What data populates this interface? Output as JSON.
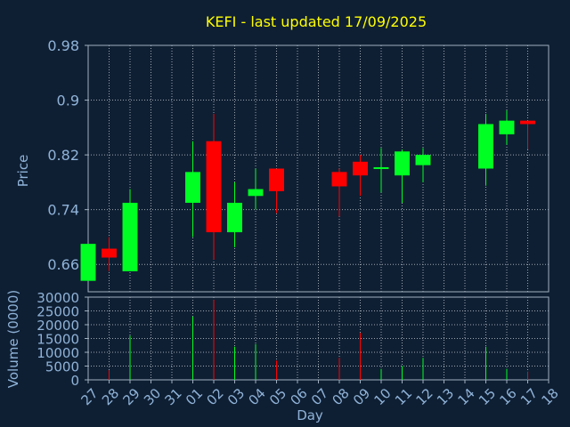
{
  "chart_data": {
    "type": "candlestick",
    "title": "KEFI - last updated 17/09/2025",
    "xlabel": "Day",
    "ylabel_price": "Price",
    "ylabel_volume": "Volume (0000)",
    "grid": true,
    "colors": {
      "background": "#0f1f33",
      "up": "#00ff22",
      "down": "#ff0000",
      "title": "#ffff00",
      "axis_text": "#8fb3d9",
      "grid": "#c0c8d0",
      "frame": "#a0b0c0"
    },
    "x_ticks": [
      "27",
      "28",
      "29",
      "30",
      "31",
      "01",
      "02",
      "03",
      "04",
      "05",
      "06",
      "07",
      "08",
      "09",
      "10",
      "11",
      "12",
      "13",
      "14",
      "15",
      "16",
      "17",
      "18"
    ],
    "price_axis": {
      "ylim": [
        0.62,
        0.98
      ],
      "ticks": [
        0.66,
        0.74,
        0.82,
        0.9,
        0.98
      ],
      "tick_labels": [
        "0.66",
        "0.74",
        "0.82",
        "0.9",
        "0.98"
      ]
    },
    "volume_axis": {
      "ylim": [
        0,
        30000
      ],
      "ticks": [
        0,
        5000,
        10000,
        15000,
        20000,
        25000,
        30000
      ],
      "tick_labels": [
        "0",
        "5000",
        "10000",
        "15000",
        "20000",
        "25000",
        "30000"
      ]
    },
    "candles": [
      {
        "day": 0,
        "open": 0.636,
        "close": 0.69,
        "high": 0.69,
        "low": 0.636,
        "volume": 0
      },
      {
        "day": 1,
        "open": 0.683,
        "close": 0.67,
        "high": 0.7,
        "low": 0.65,
        "volume": 3500
      },
      {
        "day": 2,
        "open": 0.65,
        "close": 0.75,
        "high": 0.77,
        "low": 0.65,
        "volume": 16000
      },
      {
        "day": 5,
        "open": 0.75,
        "close": 0.795,
        "high": 0.84,
        "low": 0.7,
        "volume": 23000
      },
      {
        "day": 6,
        "open": 0.84,
        "close": 0.707,
        "high": 0.88,
        "low": 0.667,
        "volume": 29000
      },
      {
        "day": 7,
        "open": 0.707,
        "close": 0.75,
        "high": 0.78,
        "low": 0.685,
        "volume": 12000
      },
      {
        "day": 8,
        "open": 0.76,
        "close": 0.77,
        "high": 0.8,
        "low": 0.74,
        "volume": 13000
      },
      {
        "day": 9,
        "open": 0.8,
        "close": 0.767,
        "high": 0.8,
        "low": 0.735,
        "volume": 7000
      },
      {
        "day": 12,
        "open": 0.795,
        "close": 0.774,
        "high": 0.8,
        "low": 0.73,
        "volume": 8000
      },
      {
        "day": 13,
        "open": 0.81,
        "close": 0.79,
        "high": 0.82,
        "low": 0.76,
        "volume": 17000
      },
      {
        "day": 14,
        "open": 0.8,
        "close": 0.802,
        "high": 0.83,
        "low": 0.765,
        "volume": 4000
      },
      {
        "day": 15,
        "open": 0.79,
        "close": 0.825,
        "high": 0.828,
        "low": 0.75,
        "volume": 5000
      },
      {
        "day": 16,
        "open": 0.805,
        "close": 0.82,
        "high": 0.83,
        "low": 0.78,
        "volume": 8000
      },
      {
        "day": 19,
        "open": 0.8,
        "close": 0.865,
        "high": 0.88,
        "low": 0.775,
        "volume": 12000
      },
      {
        "day": 20,
        "open": 0.85,
        "close": 0.87,
        "high": 0.885,
        "low": 0.835,
        "volume": 4000
      },
      {
        "day": 21,
        "open": 0.87,
        "close": 0.865,
        "high": 0.87,
        "low": 0.828,
        "volume": 3000
      }
    ]
  }
}
